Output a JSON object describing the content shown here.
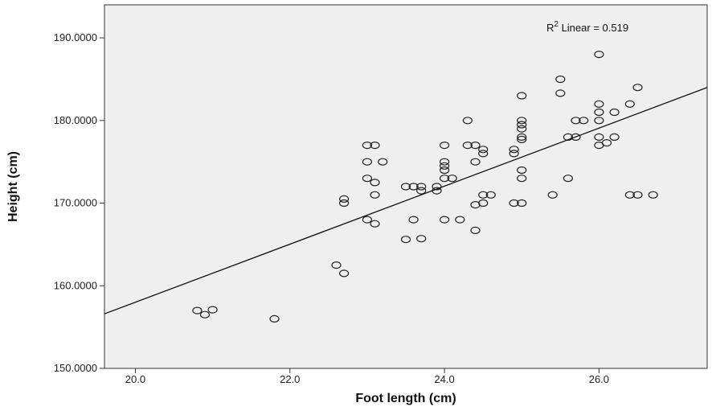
{
  "chart_data": {
    "type": "scatter",
    "title": "",
    "xlabel": "Foot length (cm)",
    "ylabel": "Height (cm)",
    "xlim": [
      19.6,
      27.4
    ],
    "ylim": [
      150,
      194
    ],
    "xticks": [
      20.0,
      22.0,
      24.0,
      26.0
    ],
    "xtick_labels": [
      "20.0",
      "22.0",
      "24.0",
      "26.0"
    ],
    "yticks": [
      150,
      160,
      170,
      180,
      190
    ],
    "ytick_labels": [
      "150.0000",
      "160.0000",
      "170.0000",
      "180.0000",
      "190.0000"
    ],
    "grid": false,
    "background_color": "#efefef",
    "annotation": {
      "r_label": "R",
      "superscript": "2",
      "rest": " Linear = 0.519"
    },
    "fit_line": {
      "x": [
        19.6,
        27.4
      ],
      "y": [
        156.6,
        184.0
      ]
    },
    "points": [
      [
        20.8,
        157.0
      ],
      [
        20.9,
        156.5
      ],
      [
        21.0,
        157.1
      ],
      [
        21.8,
        156.0
      ],
      [
        22.6,
        162.5
      ],
      [
        22.7,
        161.5
      ],
      [
        22.7,
        170.5
      ],
      [
        22.7,
        170.0
      ],
      [
        23.0,
        177.0
      ],
      [
        23.0,
        175.0
      ],
      [
        23.0,
        173.0
      ],
      [
        23.0,
        168.0
      ],
      [
        23.1,
        177.0
      ],
      [
        23.1,
        172.5
      ],
      [
        23.1,
        171.0
      ],
      [
        23.1,
        167.5
      ],
      [
        23.2,
        175.0
      ],
      [
        23.5,
        172.0
      ],
      [
        23.5,
        165.6
      ],
      [
        23.6,
        172.0
      ],
      [
        23.6,
        168.0
      ],
      [
        23.7,
        172.0
      ],
      [
        23.7,
        171.5
      ],
      [
        23.7,
        165.7
      ],
      [
        23.9,
        172.0
      ],
      [
        23.9,
        171.5
      ],
      [
        24.0,
        177.0
      ],
      [
        24.0,
        175.0
      ],
      [
        24.0,
        174.5
      ],
      [
        24.0,
        174.0
      ],
      [
        24.0,
        173.0
      ],
      [
        24.0,
        168.0
      ],
      [
        24.1,
        173.0
      ],
      [
        24.2,
        168.0
      ],
      [
        24.3,
        180.0
      ],
      [
        24.3,
        177.0
      ],
      [
        24.4,
        177.0
      ],
      [
        24.4,
        175.0
      ],
      [
        24.4,
        169.8
      ],
      [
        24.4,
        166.7
      ],
      [
        24.5,
        176.5
      ],
      [
        24.5,
        176.0
      ],
      [
        24.5,
        171.0
      ],
      [
        24.5,
        170.0
      ],
      [
        24.6,
        171.0
      ],
      [
        24.9,
        176.5
      ],
      [
        24.9,
        176.0
      ],
      [
        24.9,
        170.0
      ],
      [
        25.0,
        183.0
      ],
      [
        25.0,
        180.0
      ],
      [
        25.0,
        179.5
      ],
      [
        25.0,
        179.0
      ],
      [
        25.0,
        178.0
      ],
      [
        25.0,
        177.7
      ],
      [
        25.0,
        174.0
      ],
      [
        25.0,
        173.0
      ],
      [
        25.0,
        170.0
      ],
      [
        25.4,
        171.0
      ],
      [
        25.5,
        185.0
      ],
      [
        25.5,
        183.3
      ],
      [
        25.6,
        178.0
      ],
      [
        25.6,
        173.0
      ],
      [
        25.7,
        180.0
      ],
      [
        25.7,
        178.0
      ],
      [
        25.8,
        180.0
      ],
      [
        26.0,
        188.0
      ],
      [
        26.0,
        182.0
      ],
      [
        26.0,
        181.0
      ],
      [
        26.0,
        180.0
      ],
      [
        26.0,
        178.0
      ],
      [
        26.0,
        177.0
      ],
      [
        26.1,
        177.3
      ],
      [
        26.2,
        181.0
      ],
      [
        26.2,
        178.0
      ],
      [
        26.4,
        182.0
      ],
      [
        26.4,
        171.0
      ],
      [
        26.5,
        184.0
      ],
      [
        26.5,
        171.0
      ],
      [
        26.7,
        171.0
      ]
    ]
  }
}
